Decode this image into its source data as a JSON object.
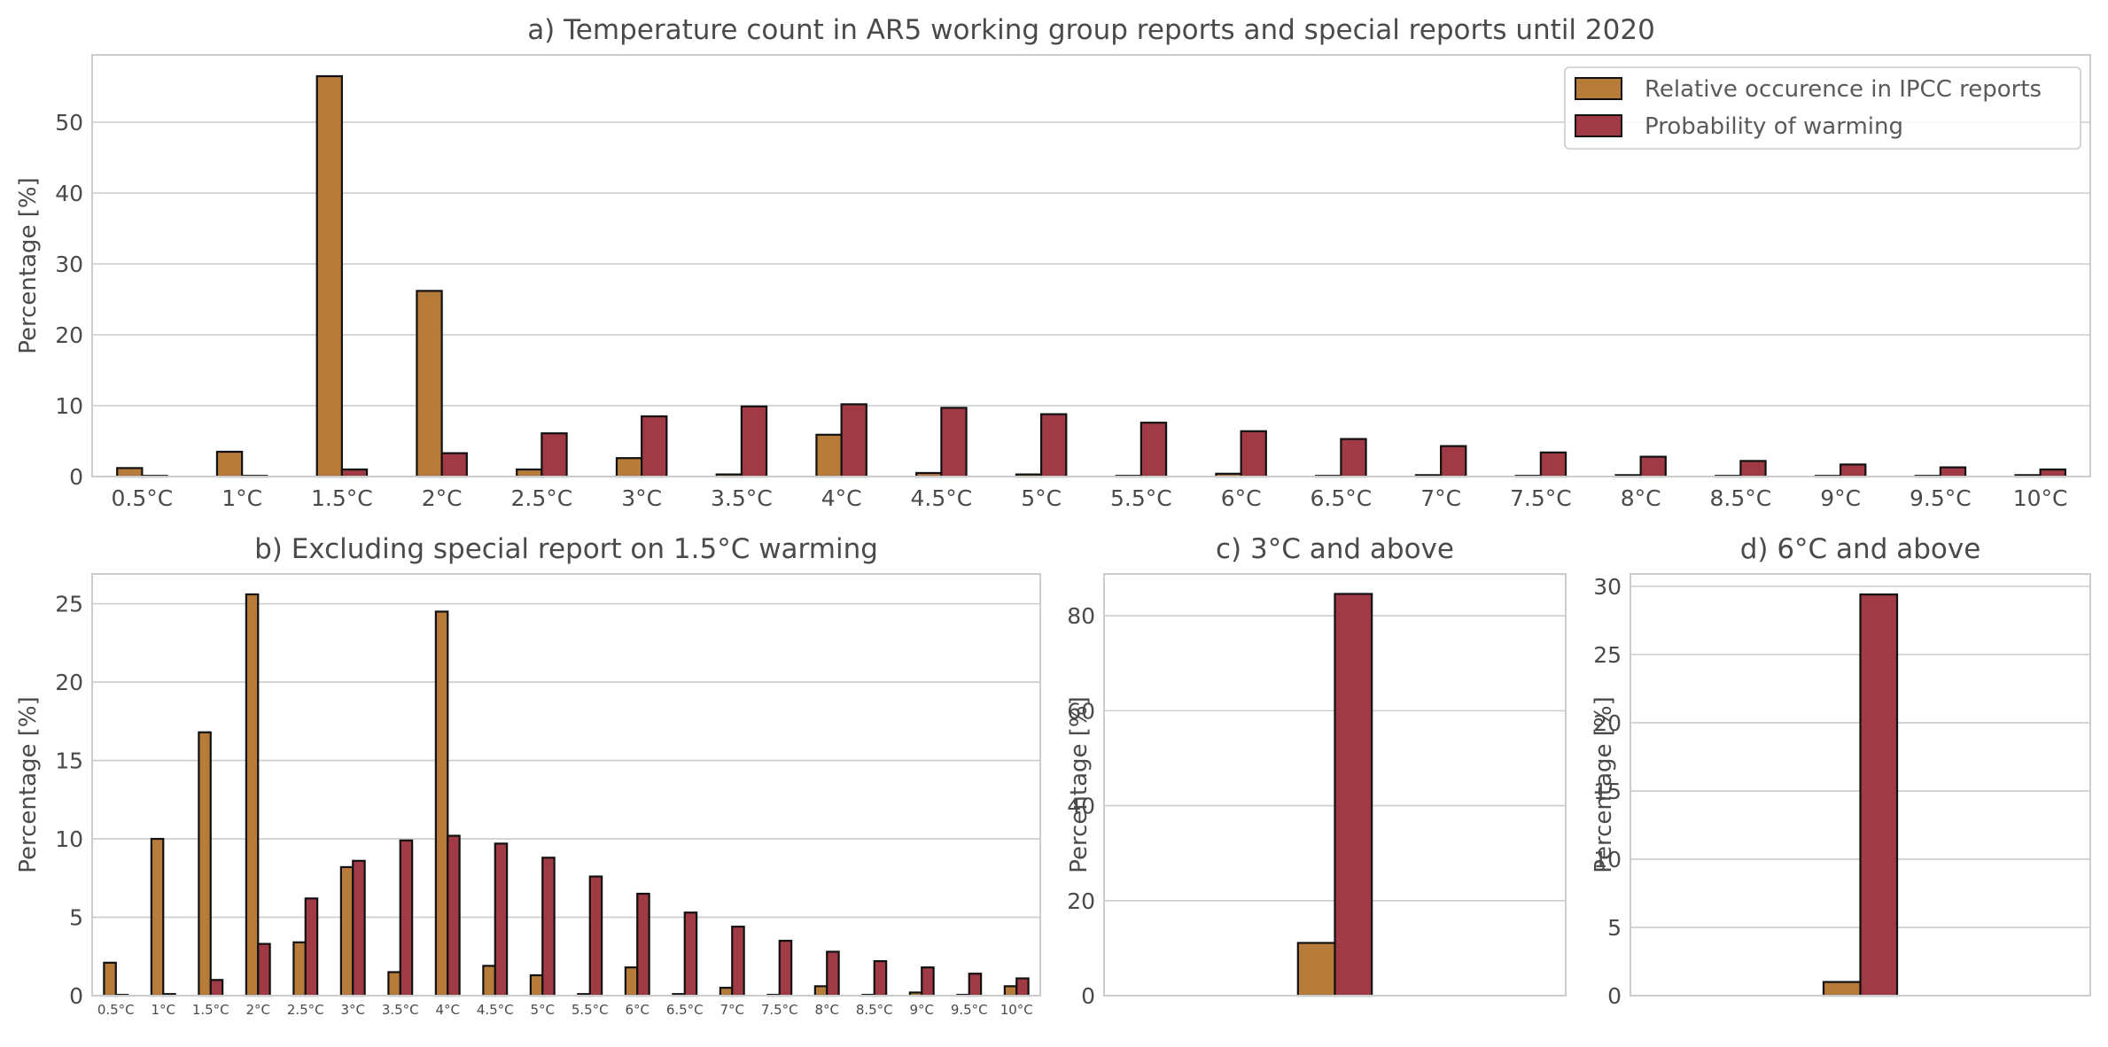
{
  "colors": {
    "ipcc": "#B87C3A",
    "warming": "#A03A44",
    "edge": "#111111",
    "grid": "#CCCCCC",
    "frame": "#CCCCCC"
  },
  "legend": {
    "placement": "top-right",
    "items": [
      {
        "label": "Relative occurence in IPCC reports",
        "color": "#B87C3A"
      },
      {
        "label": "Probability of warming",
        "color": "#A03A44"
      }
    ]
  },
  "chart_data": [
    {
      "id": "a",
      "type": "bar",
      "title": "a) Temperature count in AR5 working group reports and special reports until 2020",
      "ylabel": "Percentage [%]",
      "ylim": [
        0,
        59.5
      ],
      "yticks": [
        "0",
        "10",
        "20",
        "30",
        "40",
        "50"
      ],
      "grid": true,
      "categories": [
        "0.5°C",
        "1°C",
        "1.5°C",
        "2°C",
        "2.5°C",
        "3°C",
        "3.5°C",
        "4°C",
        "4.5°C",
        "5°C",
        "5.5°C",
        "6°C",
        "6.5°C",
        "7°C",
        "7.5°C",
        "8°C",
        "8.5°C",
        "9°C",
        "9.5°C",
        "10°C"
      ],
      "series": [
        {
          "name": "Relative occurence in IPCC reports",
          "values": [
            1.2,
            3.5,
            56.5,
            26.2,
            1.0,
            2.6,
            0.3,
            5.9,
            0.5,
            0.3,
            0.1,
            0.4,
            0.1,
            0.2,
            0.1,
            0.2,
            0.1,
            0.1,
            0.1,
            0.2
          ]
        },
        {
          "name": "Probability of warming",
          "values": [
            0.1,
            0.1,
            1.0,
            3.3,
            6.1,
            8.5,
            9.9,
            10.2,
            9.7,
            8.8,
            7.6,
            6.4,
            5.3,
            4.3,
            3.4,
            2.8,
            2.2,
            1.7,
            1.3,
            1.0
          ]
        }
      ]
    },
    {
      "id": "b",
      "type": "bar",
      "title": "b) Excluding special report on 1.5°C warming",
      "ylabel": "Percentage [%]",
      "ylim": [
        0,
        26.9
      ],
      "yticks": [
        "0",
        "5",
        "10",
        "15",
        "20",
        "25"
      ],
      "grid": true,
      "categories": [
        "0.5°C",
        "1°C",
        "1.5°C",
        "2°C",
        "2.5°C",
        "3°C",
        "3.5°C",
        "4°C",
        "4.5°C",
        "5°C",
        "5.5°C",
        "6°C",
        "6.5°C",
        "7°C",
        "7.5°C",
        "8°C",
        "8.5°C",
        "9°C",
        "9.5°C",
        "10°C"
      ],
      "series": [
        {
          "name": "Relative occurence in IPCC reports",
          "values": [
            2.1,
            10.0,
            16.8,
            25.6,
            3.4,
            8.2,
            1.5,
            24.5,
            1.9,
            1.3,
            0.1,
            1.8,
            0.1,
            0.5,
            0.05,
            0.6,
            0.05,
            0.2,
            0.05,
            0.6
          ]
        },
        {
          "name": "Probability of warming",
          "values": [
            0.05,
            0.1,
            1.0,
            3.3,
            6.2,
            8.6,
            9.9,
            10.2,
            9.7,
            8.8,
            7.6,
            6.5,
            5.3,
            4.4,
            3.5,
            2.8,
            2.2,
            1.8,
            1.4,
            1.1
          ]
        }
      ]
    },
    {
      "id": "c",
      "type": "bar",
      "title": "c) 3°C and above",
      "ylabel": "Percentage [%]",
      "ylim": [
        0,
        88.8
      ],
      "yticks": [
        "0",
        "20",
        "40",
        "60",
        "80"
      ],
      "grid": true,
      "categories": [
        ""
      ],
      "series": [
        {
          "name": "Relative occurence in IPCC reports",
          "values": [
            11.1
          ]
        },
        {
          "name": "Probability of warming",
          "values": [
            84.6
          ]
        }
      ]
    },
    {
      "id": "d",
      "type": "bar",
      "title": "d) 6°C and above",
      "ylabel": "Percentage [%]",
      "ylim": [
        0,
        30.9
      ],
      "yticks": [
        "0",
        "5",
        "10",
        "15",
        "20",
        "25",
        "30"
      ],
      "grid": true,
      "categories": [
        ""
      ],
      "series": [
        {
          "name": "Relative occurence in IPCC reports",
          "values": [
            1.0
          ]
        },
        {
          "name": "Probability of warming",
          "values": [
            29.4
          ]
        }
      ]
    }
  ]
}
